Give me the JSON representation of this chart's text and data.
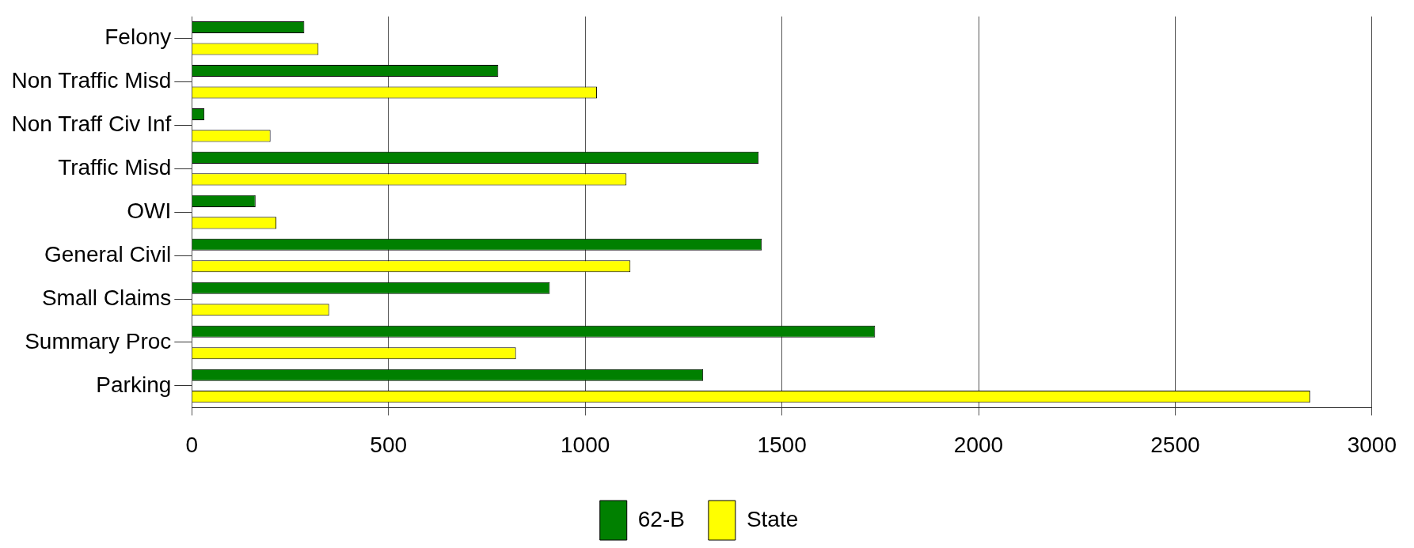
{
  "chart_data": {
    "type": "bar",
    "orientation": "horizontal",
    "categories": [
      "Felony",
      "Non Traffic Misd",
      "Non Traff Civ Inf",
      "Traffic Misd",
      "OWI",
      "General Civil",
      "Small Claims",
      "Summary Proc",
      "Parking"
    ],
    "series": [
      {
        "name": "62-B",
        "color": "#008000",
        "values": [
          286,
          779,
          32,
          1441,
          162,
          1449,
          910,
          1737,
          1300
        ]
      },
      {
        "name": "State",
        "color": "#ffff00",
        "values": [
          322,
          1030,
          200,
          1105,
          215,
          1115,
          349,
          824,
          2843
        ]
      }
    ],
    "xlim": [
      0,
      3000
    ],
    "xticks": [
      0,
      500,
      1000,
      1500,
      2000,
      2500,
      3000
    ],
    "grid": "x",
    "legend": "bottom"
  }
}
